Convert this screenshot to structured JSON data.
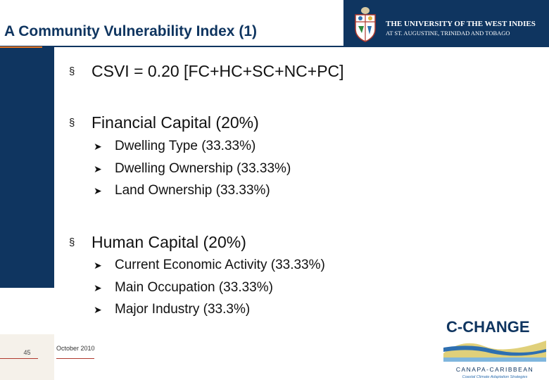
{
  "slide": {
    "title": "A Community Vulnerability Index (1)",
    "page_number": "45",
    "date": "October 2010"
  },
  "header": {
    "university_line1": "THE UNIVERSITY OF THE WEST INDIES",
    "university_line2": "AT ST. AUGUSTINE, TRINIDAD AND TOBAGO"
  },
  "content": {
    "formula": "CSVI = 0.20 [FC+HC+SC+NC+PC]",
    "sections": [
      {
        "heading": "Financial Capital (20%)",
        "items": [
          "Dwelling Type (33.33%)",
          "Dwelling Ownership (33.33%)",
          "Land Ownership (33.33%)"
        ]
      },
      {
        "heading": "Human Capital (20%)",
        "items": [
          "Current Economic Activity (33.33%)",
          "Main Occupation (33.33%)",
          "Major Industry (33.3%)"
        ]
      }
    ]
  },
  "logo": {
    "name": "C-CHANGE",
    "line1": "CANAPA-CARIBBEAN",
    "line2": "Coastal Climate Adaptation Strategies"
  },
  "colors": {
    "navy": "#0f3560",
    "orange": "#e87722",
    "red": "#b03a2e"
  }
}
